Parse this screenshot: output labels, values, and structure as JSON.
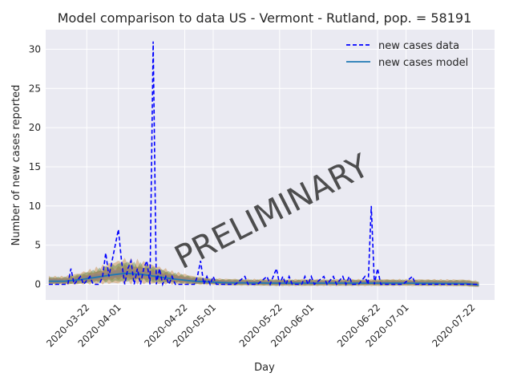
{
  "chart_data": {
    "type": "line",
    "title": "Model comparison to data US - Vermont - Rutland, pop. = 58191",
    "xlabel": "Day",
    "ylabel": "Number of new cases reported",
    "watermark": "PRELIMINARY",
    "xlim": [
      "2020-03-09",
      "2020-07-29"
    ],
    "ylim": [
      -2,
      32.5
    ],
    "y_ticks": [
      0,
      5,
      10,
      15,
      20,
      25,
      30
    ],
    "x_ticks": [
      "2020-03-22",
      "2020-04-01",
      "2020-04-22",
      "2020-05-01",
      "2020-05-22",
      "2020-06-01",
      "2020-06-22",
      "2020-07-01",
      "2020-07-22"
    ],
    "grid": true,
    "legend_position": "top-right",
    "colors": {
      "background": "#eaeaf2",
      "grid": "#ffffff",
      "data_line": "#0000ff",
      "model_line": "#1f77b4",
      "band_orange": "#c8883a",
      "band_green": "#5a8a4a",
      "band_pink": "#d48fb0",
      "band_brown": "#8b6a3a",
      "band_gray": "#808080",
      "watermark": "#b0b0b0"
    },
    "series": [
      {
        "name": "new cases data",
        "style": "dashed",
        "points": [
          [
            "2020-03-10",
            0
          ],
          [
            "2020-03-12",
            0
          ],
          [
            "2020-03-14",
            0
          ],
          [
            "2020-03-16",
            0
          ],
          [
            "2020-03-17",
            2
          ],
          [
            "2020-03-18",
            0
          ],
          [
            "2020-03-20",
            1
          ],
          [
            "2020-03-21",
            0
          ],
          [
            "2020-03-23",
            1
          ],
          [
            "2020-03-24",
            0
          ],
          [
            "2020-03-26",
            0
          ],
          [
            "2020-03-27",
            1
          ],
          [
            "2020-03-28",
            4
          ],
          [
            "2020-03-29",
            1
          ],
          [
            "2020-03-30",
            3
          ],
          [
            "2020-03-31",
            5
          ],
          [
            "2020-04-01",
            7
          ],
          [
            "2020-04-02",
            3
          ],
          [
            "2020-04-03",
            0
          ],
          [
            "2020-04-04",
            2
          ],
          [
            "2020-04-05",
            3
          ],
          [
            "2020-04-06",
            0
          ],
          [
            "2020-04-07",
            2
          ],
          [
            "2020-04-08",
            0
          ],
          [
            "2020-04-09",
            2
          ],
          [
            "2020-04-10",
            3
          ],
          [
            "2020-04-11",
            0
          ],
          [
            "2020-04-12",
            31
          ],
          [
            "2020-04-13",
            0
          ],
          [
            "2020-04-14",
            2
          ],
          [
            "2020-04-15",
            0
          ],
          [
            "2020-04-16",
            1
          ],
          [
            "2020-04-17",
            0
          ],
          [
            "2020-04-18",
            1
          ],
          [
            "2020-04-19",
            0
          ],
          [
            "2020-04-20",
            0
          ],
          [
            "2020-04-22",
            0
          ],
          [
            "2020-04-25",
            0
          ],
          [
            "2020-04-26",
            1
          ],
          [
            "2020-04-27",
            3
          ],
          [
            "2020-04-28",
            0
          ],
          [
            "2020-04-29",
            1
          ],
          [
            "2020-04-30",
            0
          ],
          [
            "2020-05-01",
            1
          ],
          [
            "2020-05-02",
            0
          ],
          [
            "2020-05-05",
            0
          ],
          [
            "2020-05-08",
            0
          ],
          [
            "2020-05-11",
            1
          ],
          [
            "2020-05-12",
            0
          ],
          [
            "2020-05-15",
            0
          ],
          [
            "2020-05-18",
            1
          ],
          [
            "2020-05-19",
            0
          ],
          [
            "2020-05-21",
            2
          ],
          [
            "2020-05-22",
            0
          ],
          [
            "2020-05-23",
            1
          ],
          [
            "2020-05-24",
            0
          ],
          [
            "2020-05-25",
            1
          ],
          [
            "2020-05-26",
            0
          ],
          [
            "2020-05-29",
            0
          ],
          [
            "2020-05-30",
            1
          ],
          [
            "2020-05-31",
            0
          ],
          [
            "2020-06-01",
            1
          ],
          [
            "2020-06-02",
            0
          ],
          [
            "2020-06-05",
            1
          ],
          [
            "2020-06-06",
            0
          ],
          [
            "2020-06-08",
            1
          ],
          [
            "2020-06-09",
            0
          ],
          [
            "2020-06-11",
            1
          ],
          [
            "2020-06-12",
            0
          ],
          [
            "2020-06-13",
            1
          ],
          [
            "2020-06-14",
            0
          ],
          [
            "2020-06-16",
            0
          ],
          [
            "2020-06-18",
            1
          ],
          [
            "2020-06-19",
            0
          ],
          [
            "2020-06-20",
            10
          ],
          [
            "2020-06-21",
            0
          ],
          [
            "2020-06-22",
            2
          ],
          [
            "2020-06-23",
            0
          ],
          [
            "2020-06-25",
            0
          ],
          [
            "2020-06-28",
            0
          ],
          [
            "2020-06-30",
            0
          ],
          [
            "2020-07-03",
            1
          ],
          [
            "2020-07-04",
            0
          ],
          [
            "2020-07-06",
            0
          ],
          [
            "2020-07-09",
            0
          ],
          [
            "2020-07-12",
            0
          ],
          [
            "2020-07-15",
            0
          ],
          [
            "2020-07-18",
            0
          ],
          [
            "2020-07-21",
            0
          ],
          [
            "2020-07-24",
            0
          ]
        ]
      },
      {
        "name": "new cases model",
        "style": "solid",
        "points": [
          [
            "2020-03-10",
            0.4
          ],
          [
            "2020-03-15",
            0.4
          ],
          [
            "2020-03-20",
            0.6
          ],
          [
            "2020-03-25",
            0.9
          ],
          [
            "2020-03-30",
            1.2
          ],
          [
            "2020-04-03",
            1.4
          ],
          [
            "2020-04-08",
            1.3
          ],
          [
            "2020-04-13",
            1.0
          ],
          [
            "2020-04-18",
            0.7
          ],
          [
            "2020-04-25",
            0.4
          ],
          [
            "2020-05-05",
            0.2
          ],
          [
            "2020-05-20",
            0.15
          ],
          [
            "2020-06-10",
            0.15
          ],
          [
            "2020-07-01",
            0.15
          ],
          [
            "2020-07-20",
            0.1
          ],
          [
            "2020-07-24",
            -0.1
          ]
        ]
      }
    ]
  }
}
